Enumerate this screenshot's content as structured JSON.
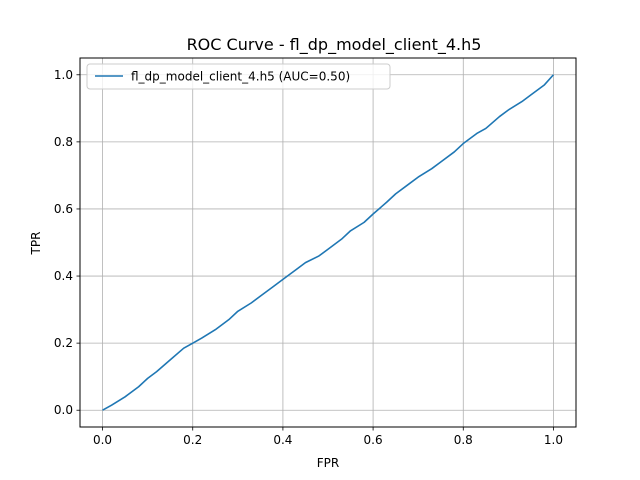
{
  "chart_data": {
    "type": "line",
    "title": "ROC Curve - fl_dp_model_client_4.h5",
    "xlabel": "FPR",
    "ylabel": "TPR",
    "xlim": [
      -0.05,
      1.05
    ],
    "ylim": [
      -0.05,
      1.05
    ],
    "xticks": [
      0.0,
      0.2,
      0.4,
      0.6,
      0.8,
      1.0
    ],
    "yticks": [
      0.0,
      0.2,
      0.4,
      0.6,
      0.8,
      1.0
    ],
    "xtick_labels": [
      "0.0",
      "0.2",
      "0.4",
      "0.6",
      "0.8",
      "1.0"
    ],
    "ytick_labels": [
      "0.0",
      "0.2",
      "0.4",
      "0.6",
      "0.8",
      "1.0"
    ],
    "grid": true,
    "legend_position": "top-left",
    "series": [
      {
        "name": "fl_dp_model_client_4.h5 (AUC=0.50)",
        "color": "#1f77b4",
        "x": [
          0.0,
          0.02,
          0.05,
          0.08,
          0.1,
          0.12,
          0.15,
          0.18,
          0.2,
          0.22,
          0.25,
          0.28,
          0.3,
          0.33,
          0.35,
          0.38,
          0.4,
          0.43,
          0.45,
          0.48,
          0.5,
          0.53,
          0.55,
          0.58,
          0.6,
          0.63,
          0.65,
          0.68,
          0.7,
          0.73,
          0.75,
          0.78,
          0.8,
          0.83,
          0.85,
          0.88,
          0.9,
          0.93,
          0.95,
          0.98,
          1.0
        ],
        "y": [
          0.0,
          0.015,
          0.04,
          0.07,
          0.095,
          0.115,
          0.15,
          0.185,
          0.2,
          0.215,
          0.24,
          0.27,
          0.295,
          0.32,
          0.34,
          0.37,
          0.39,
          0.42,
          0.44,
          0.46,
          0.48,
          0.51,
          0.535,
          0.56,
          0.585,
          0.62,
          0.645,
          0.675,
          0.695,
          0.72,
          0.74,
          0.77,
          0.795,
          0.825,
          0.84,
          0.875,
          0.895,
          0.92,
          0.94,
          0.97,
          1.0
        ]
      }
    ]
  }
}
